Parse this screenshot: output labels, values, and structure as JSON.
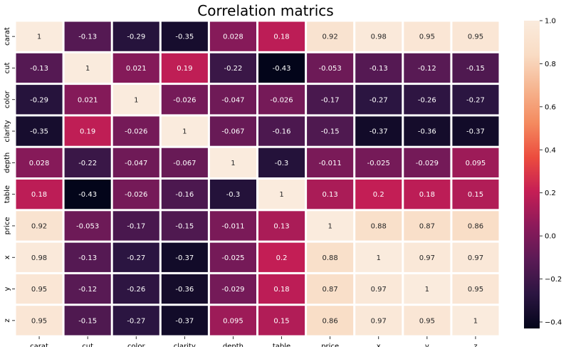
{
  "chart_data": {
    "type": "heatmap",
    "title": "Correlation matrics",
    "x_categories": [
      "carat",
      "cut",
      "color",
      "clarity",
      "depth",
      "table",
      "price",
      "x",
      "y",
      "z"
    ],
    "y_categories": [
      "carat",
      "cut",
      "color",
      "clarity",
      "depth",
      "table",
      "price",
      "x",
      "y",
      "z"
    ],
    "values": [
      [
        1,
        -0.13,
        -0.29,
        -0.35,
        0.028,
        0.18,
        0.92,
        0.98,
        0.95,
        0.95
      ],
      [
        -0.13,
        1,
        0.021,
        0.19,
        -0.22,
        -0.43,
        -0.053,
        -0.13,
        -0.12,
        -0.15
      ],
      [
        -0.29,
        0.021,
        1,
        -0.026,
        -0.047,
        -0.026,
        -0.17,
        -0.27,
        -0.26,
        -0.27
      ],
      [
        -0.35,
        0.19,
        -0.026,
        1,
        -0.067,
        -0.16,
        -0.15,
        -0.37,
        -0.36,
        -0.37
      ],
      [
        0.028,
        -0.22,
        -0.047,
        -0.067,
        1,
        -0.3,
        -0.011,
        -0.025,
        -0.029,
        0.095
      ],
      [
        0.18,
        -0.43,
        -0.026,
        -0.16,
        -0.3,
        1,
        0.13,
        0.2,
        0.18,
        0.15
      ],
      [
        0.92,
        -0.053,
        -0.17,
        -0.15,
        -0.011,
        0.13,
        1,
        0.88,
        0.87,
        0.86
      ],
      [
        0.98,
        -0.13,
        -0.27,
        -0.37,
        -0.025,
        0.2,
        0.88,
        1,
        0.97,
        0.97
      ],
      [
        0.95,
        -0.12,
        -0.26,
        -0.36,
        -0.029,
        0.18,
        0.87,
        0.97,
        1,
        0.95
      ],
      [
        0.95,
        -0.15,
        -0.27,
        -0.37,
        0.095,
        0.15,
        0.86,
        0.97,
        0.95,
        1
      ]
    ],
    "labels": [
      [
        "1",
        "-0.13",
        "-0.29",
        "-0.35",
        "0.028",
        "0.18",
        "0.92",
        "0.98",
        "0.95",
        "0.95"
      ],
      [
        "-0.13",
        "1",
        "0.021",
        "0.19",
        "-0.22",
        "-0.43",
        "-0.053",
        "-0.13",
        "-0.12",
        "-0.15"
      ],
      [
        "-0.29",
        "0.021",
        "1",
        "-0.026",
        "-0.047",
        "-0.026",
        "-0.17",
        "-0.27",
        "-0.26",
        "-0.27"
      ],
      [
        "-0.35",
        "0.19",
        "-0.026",
        "1",
        "-0.067",
        "-0.16",
        "-0.15",
        "-0.37",
        "-0.36",
        "-0.37"
      ],
      [
        "0.028",
        "-0.22",
        "-0.047",
        "-0.067",
        "1",
        "-0.3",
        "-0.011",
        "-0.025",
        "-0.029",
        "0.095"
      ],
      [
        "0.18",
        "-0.43",
        "-0.026",
        "-0.16",
        "-0.3",
        "1",
        "0.13",
        "0.2",
        "0.18",
        "0.15"
      ],
      [
        "0.92",
        "-0.053",
        "-0.17",
        "-0.15",
        "-0.011",
        "0.13",
        "1",
        "0.88",
        "0.87",
        "0.86"
      ],
      [
        "0.98",
        "-0.13",
        "-0.27",
        "-0.37",
        "-0.025",
        "0.2",
        "0.88",
        "1",
        "0.97",
        "0.97"
      ],
      [
        "0.95",
        "-0.12",
        "-0.26",
        "-0.36",
        "-0.029",
        "0.18",
        "0.87",
        "0.97",
        "1",
        "0.95"
      ],
      [
        "0.95",
        "-0.15",
        "-0.27",
        "-0.37",
        "0.095",
        "0.15",
        "0.86",
        "0.97",
        "0.95",
        "1"
      ]
    ],
    "colorbar": {
      "range": [
        -0.43,
        1
      ],
      "ticks": [
        -0.4,
        -0.2,
        0.0,
        0.2,
        0.4,
        0.6,
        0.8,
        1.0
      ],
      "tick_labels": [
        "−0.4",
        "−0.2",
        "0.0",
        "0.2",
        "0.4",
        "0.6",
        "0.8",
        "1.0"
      ],
      "colormap": "rocket",
      "stops": [
        "#03051a",
        "#2b1541",
        "#5a1a55",
        "#8c1a5a",
        "#c51e55",
        "#ec4c3e",
        "#f48a5f",
        "#f6b48f",
        "#f9dcc4",
        "#faebdd"
      ]
    },
    "grid": false,
    "cell_gap_color": "#ffffff"
  }
}
